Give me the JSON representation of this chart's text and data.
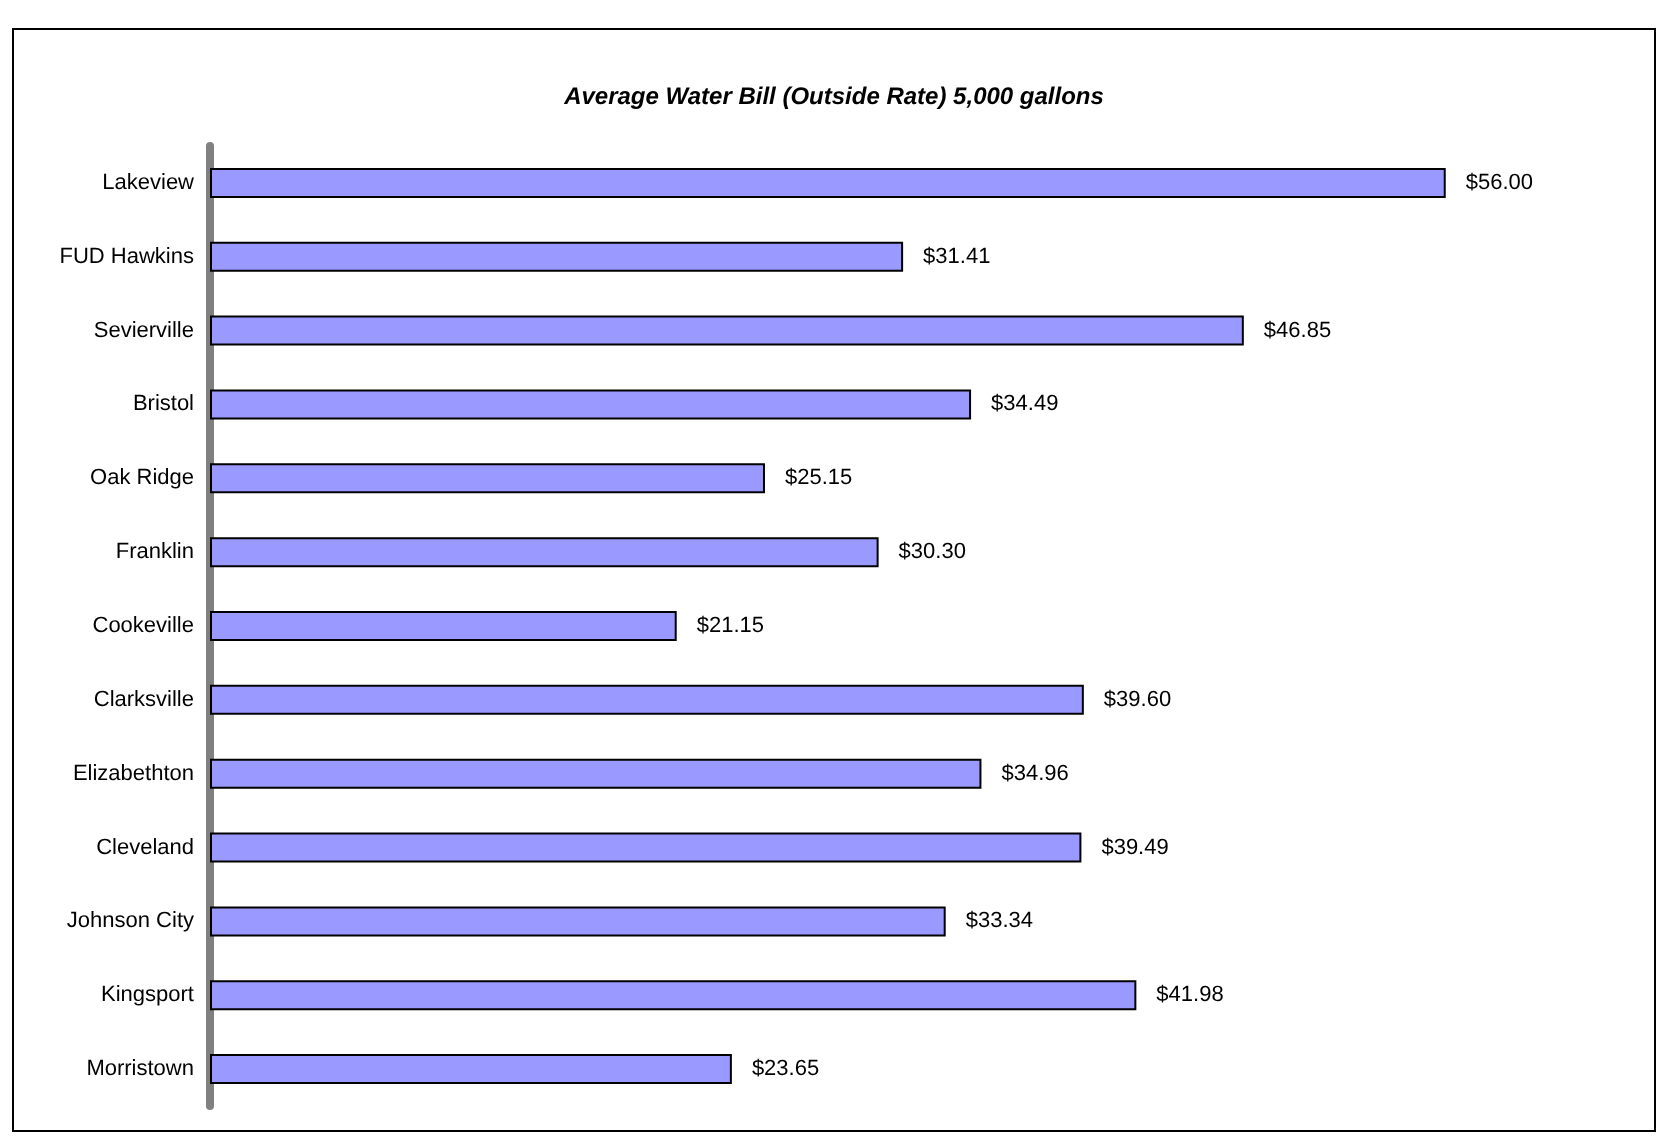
{
  "chart_data": {
    "type": "bar",
    "orientation": "horizontal",
    "title": "Average Water Bill (Outside Rate) 5,000 gallons",
    "categories": [
      "Lakeview",
      "FUD Hawkins",
      "Sevierville",
      "Bristol",
      "Oak Ridge",
      "Franklin",
      "Cookeville",
      "Clarksville",
      "Elizabethton",
      "Cleveland",
      "Johnson City",
      "Kingsport",
      "Morristown"
    ],
    "values": [
      56.0,
      31.41,
      46.85,
      34.49,
      25.15,
      30.3,
      21.15,
      39.6,
      34.96,
      39.49,
      33.34,
      41.98,
      23.65
    ],
    "value_labels": [
      "$56.00",
      "$31.41",
      "$46.85",
      "$34.49",
      "$25.15",
      "$30.30",
      "$21.15",
      "$39.60",
      "$34.96",
      "$39.49",
      "$33.34",
      "$41.98",
      "$23.65"
    ],
    "color": "#9999ff"
  }
}
